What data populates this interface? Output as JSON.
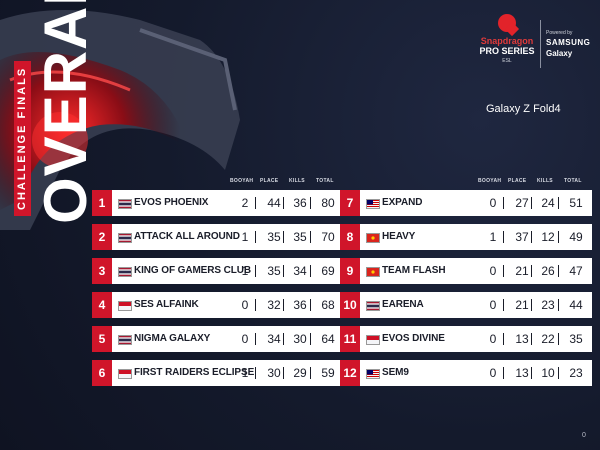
{
  "event": {
    "vertical_main": "OVERALL",
    "vertical_sub": "CHALLENGE FINALS"
  },
  "brand": {
    "name": "Snapdragon",
    "series": "PRO SERIES",
    "esl": "ESL",
    "powered_by": "Powered by",
    "sponsor": "SAMSUNG",
    "sponsor_sub": "Galaxy",
    "device": "Galaxy Z Fold4"
  },
  "columns": [
    "BOOYAH",
    "PLACE",
    "KILLS",
    "TOTAL"
  ],
  "colors": {
    "accent": "#d0152a",
    "row_bg": "#ffffff",
    "background": "#14192b"
  },
  "left_table": [
    {
      "rank": "1",
      "team": "EVOS PHOENIX",
      "flag": "thailand",
      "booyah": "2",
      "place": "44",
      "kills": "36",
      "total": "80"
    },
    {
      "rank": "2",
      "team": "ATTACK ALL AROUND",
      "flag": "thailand",
      "booyah": "1",
      "place": "35",
      "kills": "35",
      "total": "70"
    },
    {
      "rank": "3",
      "team": "KING OF GAMERS CLUB",
      "flag": "thailand",
      "booyah": "1",
      "place": "35",
      "kills": "34",
      "total": "69"
    },
    {
      "rank": "4",
      "team": "SES ALFAINK",
      "flag": "indonesia",
      "booyah": "0",
      "place": "32",
      "kills": "36",
      "total": "68"
    },
    {
      "rank": "5",
      "team": "NIGMA GALAXY",
      "flag": "thailand",
      "booyah": "0",
      "place": "34",
      "kills": "30",
      "total": "64"
    },
    {
      "rank": "6",
      "team": "FIRST RAIDERS ECLIPSE",
      "flag": "indonesia",
      "booyah": "1",
      "place": "30",
      "kills": "29",
      "total": "59"
    }
  ],
  "right_table": [
    {
      "rank": "7",
      "team": "EXPAND",
      "flag": "malaysia",
      "booyah": "0",
      "place": "27",
      "kills": "24",
      "total": "51"
    },
    {
      "rank": "8",
      "team": "HEAVY",
      "flag": "vietnam",
      "booyah": "1",
      "place": "37",
      "kills": "12",
      "total": "49"
    },
    {
      "rank": "9",
      "team": "TEAM FLASH",
      "flag": "vietnam",
      "booyah": "0",
      "place": "21",
      "kills": "26",
      "total": "47"
    },
    {
      "rank": "10",
      "team": "EARENA",
      "flag": "thailand",
      "booyah": "0",
      "place": "21",
      "kills": "23",
      "total": "44"
    },
    {
      "rank": "11",
      "team": "EVOS DIVINE",
      "flag": "indonesia",
      "booyah": "0",
      "place": "13",
      "kills": "22",
      "total": "35"
    },
    {
      "rank": "12",
      "team": "SEM9",
      "flag": "malaysia",
      "booyah": "0",
      "place": "13",
      "kills": "10",
      "total": "23"
    }
  ],
  "corner_badge": "0"
}
